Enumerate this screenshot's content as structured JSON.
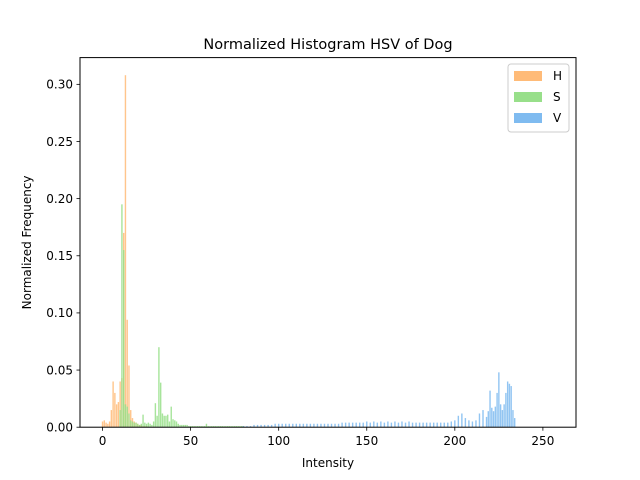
{
  "chart_data": {
    "type": "bar",
    "title": "Normalized Histogram HSV of Dog",
    "xlabel": "Intensity",
    "ylabel": "Normalized Frequency",
    "xlim": [
      -12.8,
      268.8
    ],
    "ylim": [
      0,
      0.3234
    ],
    "xticks": [
      0,
      50,
      100,
      150,
      200,
      250
    ],
    "xtick_labels": [
      "0",
      "50",
      "100",
      "150",
      "200",
      "250"
    ],
    "yticks": [
      0.0,
      0.05,
      0.1,
      0.15,
      0.2,
      0.25,
      0.3
    ],
    "ytick_labels": [
      "0.00",
      "0.05",
      "0.10",
      "0.15",
      "0.20",
      "0.25",
      "0.30"
    ],
    "grid": false,
    "legend_position": "top-right",
    "series": [
      {
        "name": "H",
        "color": "#ffbb78",
        "points": [
          [
            0,
            0.005
          ],
          [
            1,
            0.006
          ],
          [
            2,
            0.004
          ],
          [
            3,
            0.003
          ],
          [
            4,
            0.005
          ],
          [
            5,
            0.015
          ],
          [
            6,
            0.04
          ],
          [
            7,
            0.03
          ],
          [
            8,
            0.02
          ],
          [
            9,
            0.022
          ],
          [
            10,
            0.04
          ],
          [
            11,
            0.043
          ],
          [
            12,
            0.17
          ],
          [
            13,
            0.308
          ],
          [
            14,
            0.094
          ],
          [
            15,
            0.054
          ],
          [
            16,
            0.015
          ],
          [
            17,
            0.008
          ],
          [
            18,
            0.005
          ],
          [
            19,
            0.004
          ],
          [
            20,
            0.003
          ],
          [
            21,
            0.002
          ],
          [
            22,
            0.002
          ],
          [
            23,
            0.001
          ],
          [
            24,
            0.001
          ],
          [
            25,
            0.001
          ]
        ]
      },
      {
        "name": "S",
        "color": "#98df8a",
        "points": [
          [
            10,
            0.015
          ],
          [
            11,
            0.195
          ],
          [
            12,
            0.155
          ],
          [
            13,
            0.02
          ],
          [
            14,
            0.018
          ],
          [
            15,
            0.012
          ],
          [
            16,
            0.006
          ],
          [
            17,
            0.005
          ],
          [
            18,
            0.004
          ],
          [
            19,
            0.004
          ],
          [
            20,
            0.003
          ],
          [
            21,
            0.002
          ],
          [
            22,
            0.003
          ],
          [
            23,
            0.011
          ],
          [
            24,
            0.004
          ],
          [
            25,
            0.003
          ],
          [
            26,
            0.004
          ],
          [
            27,
            0.003
          ],
          [
            28,
            0.002
          ],
          [
            29,
            0.005
          ],
          [
            30,
            0.021
          ],
          [
            31,
            0.01
          ],
          [
            32,
            0.07
          ],
          [
            33,
            0.039
          ],
          [
            34,
            0.012
          ],
          [
            35,
            0.01
          ],
          [
            36,
            0.01
          ],
          [
            37,
            0.011
          ],
          [
            38,
            0.005
          ],
          [
            39,
            0.018
          ],
          [
            40,
            0.007
          ],
          [
            41,
            0.006
          ],
          [
            42,
            0.005
          ],
          [
            43,
            0.003
          ],
          [
            44,
            0.002
          ],
          [
            45,
            0.002
          ],
          [
            46,
            0.002
          ],
          [
            47,
            0.002
          ],
          [
            48,
            0.002
          ],
          [
            49,
            0.001
          ],
          [
            50,
            0.001
          ],
          [
            51,
            0.001
          ],
          [
            52,
            0.001
          ],
          [
            53,
            0.001
          ],
          [
            54,
            0.001
          ],
          [
            55,
            0.001
          ],
          [
            56,
            0.001
          ],
          [
            57,
            0.001
          ],
          [
            58,
            0.001
          ],
          [
            59,
            0.003
          ],
          [
            60,
            0.001
          ],
          [
            61,
            0.001
          ],
          [
            62,
            0.001
          ],
          [
            63,
            0.001
          ],
          [
            64,
            0.001
          ],
          [
            65,
            0.001
          ],
          [
            66,
            0.001
          ],
          [
            67,
            0.001
          ],
          [
            68,
            0.001
          ],
          [
            69,
            0.001
          ],
          [
            70,
            0.001
          ],
          [
            71,
            0.001
          ],
          [
            72,
            0.001
          ],
          [
            73,
            0.001
          ],
          [
            74,
            0.001
          ],
          [
            75,
            0.001
          ],
          [
            76,
            0.001
          ],
          [
            77,
            0.001
          ],
          [
            78,
            0.001
          ],
          [
            79,
            0.001
          ],
          [
            80,
            0.001
          ]
        ]
      },
      {
        "name": "V",
        "color": "#7fbbf0",
        "points": [
          [
            80,
            0.001
          ],
          [
            82,
            0.001
          ],
          [
            84,
            0.001
          ],
          [
            86,
            0.002
          ],
          [
            88,
            0.002
          ],
          [
            90,
            0.002
          ],
          [
            92,
            0.002
          ],
          [
            94,
            0.002
          ],
          [
            96,
            0.002
          ],
          [
            98,
            0.003
          ],
          [
            100,
            0.003
          ],
          [
            102,
            0.003
          ],
          [
            104,
            0.003
          ],
          [
            106,
            0.003
          ],
          [
            108,
            0.003
          ],
          [
            110,
            0.003
          ],
          [
            112,
            0.003
          ],
          [
            114,
            0.003
          ],
          [
            116,
            0.003
          ],
          [
            118,
            0.003
          ],
          [
            120,
            0.003
          ],
          [
            122,
            0.003
          ],
          [
            124,
            0.003
          ],
          [
            126,
            0.003
          ],
          [
            128,
            0.003
          ],
          [
            130,
            0.003
          ],
          [
            132,
            0.003
          ],
          [
            134,
            0.003
          ],
          [
            136,
            0.004
          ],
          [
            138,
            0.004
          ],
          [
            140,
            0.004
          ],
          [
            142,
            0.004
          ],
          [
            144,
            0.004
          ],
          [
            146,
            0.004
          ],
          [
            148,
            0.004
          ],
          [
            150,
            0.005
          ],
          [
            152,
            0.004
          ],
          [
            154,
            0.005
          ],
          [
            156,
            0.004
          ],
          [
            158,
            0.005
          ],
          [
            160,
            0.004
          ],
          [
            162,
            0.005
          ],
          [
            164,
            0.004
          ],
          [
            166,
            0.005
          ],
          [
            168,
            0.004
          ],
          [
            170,
            0.005
          ],
          [
            172,
            0.004
          ],
          [
            174,
            0.005
          ],
          [
            176,
            0.004
          ],
          [
            178,
            0.004
          ],
          [
            180,
            0.004
          ],
          [
            182,
            0.004
          ],
          [
            184,
            0.004
          ],
          [
            186,
            0.004
          ],
          [
            188,
            0.004
          ],
          [
            190,
            0.004
          ],
          [
            192,
            0.004
          ],
          [
            194,
            0.004
          ],
          [
            196,
            0.004
          ],
          [
            198,
            0.005
          ],
          [
            200,
            0.006
          ],
          [
            202,
            0.01
          ],
          [
            204,
            0.012
          ],
          [
            206,
            0.008
          ],
          [
            208,
            0.006
          ],
          [
            210,
            0.005
          ],
          [
            212,
            0.006
          ],
          [
            214,
            0.012
          ],
          [
            216,
            0.015
          ],
          [
            218,
            0.009
          ],
          [
            219,
            0.014
          ],
          [
            220,
            0.032
          ],
          [
            221,
            0.017
          ],
          [
            222,
            0.014
          ],
          [
            223,
            0.018
          ],
          [
            224,
            0.03
          ],
          [
            225,
            0.048
          ],
          [
            226,
            0.02
          ],
          [
            227,
            0.015
          ],
          [
            228,
            0.02
          ],
          [
            229,
            0.03
          ],
          [
            230,
            0.04
          ],
          [
            231,
            0.038
          ],
          [
            232,
            0.036
          ],
          [
            233,
            0.015
          ],
          [
            234,
            0.008
          ]
        ]
      }
    ]
  }
}
